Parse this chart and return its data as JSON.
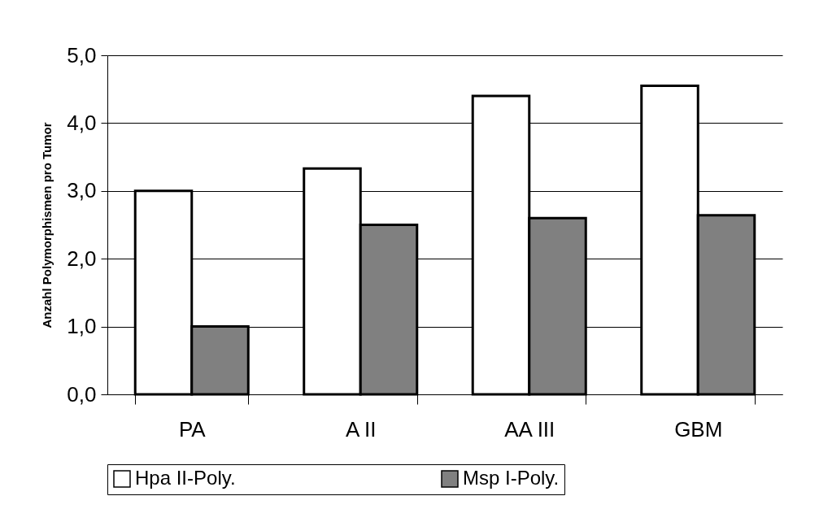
{
  "chart_data": {
    "type": "bar",
    "ylabel": "Anzahl Polymorphismen pro Tumor",
    "categories": [
      "PA",
      "A II",
      "AA III",
      "GBM"
    ],
    "series": [
      {
        "name": "Hpa II-Poly.",
        "color": "#ffffff",
        "values": [
          3.0,
          3.33,
          4.4,
          4.55
        ]
      },
      {
        "name": "Msp I-Poly.",
        "color": "#808080",
        "values": [
          1.0,
          2.5,
          2.6,
          2.64
        ]
      }
    ],
    "ylim": [
      0,
      5
    ],
    "yticks": [
      {
        "value": 0,
        "label": "0,0"
      },
      {
        "value": 1,
        "label": "1,0"
      },
      {
        "value": 2,
        "label": "2,0"
      },
      {
        "value": 3,
        "label": "3,0"
      },
      {
        "value": 4,
        "label": "4,0"
      },
      {
        "value": 5,
        "label": "5,0"
      }
    ],
    "grid": "y",
    "legend": "bottom"
  }
}
